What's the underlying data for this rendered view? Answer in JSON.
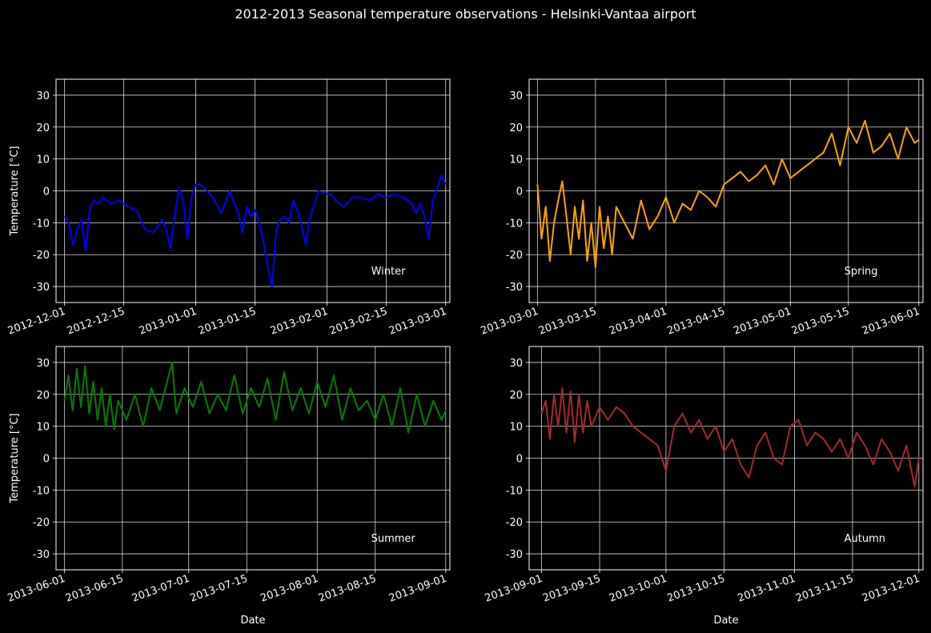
{
  "figure": {
    "title": "2012-2013 Seasonal temperature observations - Helsinki-Vantaa airport",
    "background": "#000000",
    "foreground": "#ffffff"
  },
  "chart_data": [
    {
      "type": "line",
      "panel": "top-left",
      "annotation": "Winter",
      "color": "#0000ff",
      "xlabel": "",
      "ylabel": "Temperature [°C]",
      "ylim": [
        -35,
        35
      ],
      "yticks": [
        -30,
        -20,
        -10,
        0,
        10,
        20,
        30
      ],
      "xlim": [
        "2012-11-29",
        "2013-03-02"
      ],
      "xticks": [
        "2012-12-01",
        "2012-12-15",
        "2013-01-01",
        "2013-01-15",
        "2013-02-01",
        "2013-02-15",
        "2013-03-01"
      ],
      "grid": true,
      "series": [
        {
          "x": [
            "2012-12-01",
            "2012-12-02",
            "2012-12-03",
            "2012-12-04",
            "2012-12-05",
            "2012-12-06",
            "2012-12-07",
            "2012-12-08",
            "2012-12-09",
            "2012-12-10",
            "2012-12-12",
            "2012-12-14",
            "2012-12-16",
            "2012-12-18",
            "2012-12-20",
            "2012-12-22",
            "2012-12-24",
            "2012-12-25",
            "2012-12-26",
            "2012-12-27",
            "2012-12-28",
            "2012-12-29",
            "2012-12-30",
            "2012-12-31",
            "2013-01-01",
            "2013-01-02",
            "2013-01-03",
            "2013-01-05",
            "2013-01-07",
            "2013-01-09",
            "2013-01-11",
            "2013-01-12",
            "2013-01-13",
            "2013-01-14",
            "2013-01-15",
            "2013-01-16",
            "2013-01-17",
            "2013-01-18",
            "2013-01-19",
            "2013-01-20",
            "2013-01-21",
            "2013-01-22",
            "2013-01-23",
            "2013-01-24",
            "2013-01-25",
            "2013-01-26",
            "2013-01-27",
            "2013-01-28",
            "2013-01-30",
            "2013-02-01",
            "2013-02-02",
            "2013-02-03",
            "2013-02-05",
            "2013-02-07",
            "2013-02-09",
            "2013-02-11",
            "2013-02-13",
            "2013-02-15",
            "2013-02-17",
            "2013-02-19",
            "2013-02-21",
            "2013-02-22",
            "2013-02-23",
            "2013-02-24",
            "2013-02-25",
            "2013-02-26",
            "2013-02-27",
            "2013-02-28",
            "2013-03-01"
          ],
          "values": [
            -8,
            -10,
            -17,
            -12,
            -9,
            -19,
            -5,
            -3,
            -4,
            -2,
            -4,
            -3,
            -5,
            -6,
            -12,
            -13,
            -9,
            -12,
            -18,
            -8,
            1,
            -3,
            -15,
            -2,
            2,
            2,
            1,
            -2,
            -7,
            0,
            -7,
            -13,
            -5,
            -8,
            -6,
            -10,
            -16,
            -24,
            -30,
            -12,
            -9,
            -8,
            -10,
            -3,
            -6,
            -11,
            -17,
            -8,
            0,
            -1,
            -1,
            -3,
            -5,
            -2,
            -2,
            -3,
            -1,
            -2,
            -1,
            -2,
            -4,
            -7,
            -4,
            -8,
            -15,
            -3,
            1,
            5,
            2
          ]
        }
      ]
    },
    {
      "type": "line",
      "panel": "top-right",
      "annotation": "Spring",
      "color": "#ffa500",
      "xlabel": "",
      "ylabel": "",
      "ylim": [
        -35,
        35
      ],
      "yticks": [
        -30,
        -20,
        -10,
        0,
        10,
        20,
        30
      ],
      "xlim": [
        "2013-02-27",
        "2013-06-02"
      ],
      "xticks": [
        "2013-03-01",
        "2013-03-15",
        "2013-04-01",
        "2013-04-15",
        "2013-05-01",
        "2013-05-15",
        "2013-06-01"
      ],
      "grid": true,
      "series": [
        {
          "x": [
            "2013-03-01",
            "2013-03-02",
            "2013-03-03",
            "2013-03-04",
            "2013-03-05",
            "2013-03-06",
            "2013-03-07",
            "2013-03-08",
            "2013-03-09",
            "2013-03-10",
            "2013-03-11",
            "2013-03-12",
            "2013-03-13",
            "2013-03-14",
            "2013-03-15",
            "2013-03-16",
            "2013-03-17",
            "2013-03-18",
            "2013-03-19",
            "2013-03-20",
            "2013-03-22",
            "2013-03-24",
            "2013-03-26",
            "2013-03-28",
            "2013-03-30",
            "2013-04-01",
            "2013-04-03",
            "2013-04-05",
            "2013-04-07",
            "2013-04-09",
            "2013-04-11",
            "2013-04-13",
            "2013-04-15",
            "2013-04-17",
            "2013-04-19",
            "2013-04-21",
            "2013-04-23",
            "2013-04-25",
            "2013-04-27",
            "2013-04-29",
            "2013-05-01",
            "2013-05-03",
            "2013-05-05",
            "2013-05-07",
            "2013-05-09",
            "2013-05-11",
            "2013-05-13",
            "2013-05-15",
            "2013-05-17",
            "2013-05-19",
            "2013-05-21",
            "2013-05-23",
            "2013-05-25",
            "2013-05-27",
            "2013-05-29",
            "2013-05-31",
            "2013-06-01"
          ],
          "values": [
            2,
            -15,
            -5,
            -22,
            -10,
            -3,
            3,
            -8,
            -20,
            -5,
            -15,
            -3,
            -22,
            -10,
            -24,
            -5,
            -18,
            -8,
            -20,
            -5,
            -10,
            -15,
            -3,
            -12,
            -8,
            -2,
            -10,
            -4,
            -6,
            0,
            -2,
            -5,
            2,
            4,
            6,
            3,
            5,
            8,
            2,
            10,
            4,
            6,
            8,
            10,
            12,
            18,
            8,
            20,
            15,
            22,
            12,
            14,
            18,
            10,
            20,
            15,
            16
          ]
        }
      ]
    },
    {
      "type": "line",
      "panel": "bottom-left",
      "annotation": "Summer",
      "color": "#008000",
      "xlabel": "Date",
      "ylabel": "Temperature [°C]",
      "ylim": [
        -35,
        35
      ],
      "yticks": [
        -30,
        -20,
        -10,
        0,
        10,
        20,
        30
      ],
      "xlim": [
        "2013-05-30",
        "2013-09-02"
      ],
      "xticks": [
        "2013-06-01",
        "2013-06-15",
        "2013-07-01",
        "2013-07-15",
        "2013-08-01",
        "2013-08-15",
        "2013-09-01"
      ],
      "grid": true,
      "series": [
        {
          "x": [
            "2013-06-01",
            "2013-06-02",
            "2013-06-03",
            "2013-06-04",
            "2013-06-05",
            "2013-06-06",
            "2013-06-07",
            "2013-06-08",
            "2013-06-09",
            "2013-06-10",
            "2013-06-11",
            "2013-06-12",
            "2013-06-13",
            "2013-06-14",
            "2013-06-16",
            "2013-06-18",
            "2013-06-20",
            "2013-06-22",
            "2013-06-24",
            "2013-06-26",
            "2013-06-27",
            "2013-06-28",
            "2013-06-30",
            "2013-07-02",
            "2013-07-04",
            "2013-07-06",
            "2013-07-08",
            "2013-07-10",
            "2013-07-12",
            "2013-07-14",
            "2013-07-16",
            "2013-07-18",
            "2013-07-20",
            "2013-07-22",
            "2013-07-24",
            "2013-07-26",
            "2013-07-28",
            "2013-07-30",
            "2013-08-01",
            "2013-08-03",
            "2013-08-05",
            "2013-08-07",
            "2013-08-09",
            "2013-08-11",
            "2013-08-13",
            "2013-08-15",
            "2013-08-17",
            "2013-08-19",
            "2013-08-21",
            "2013-08-23",
            "2013-08-25",
            "2013-08-27",
            "2013-08-29",
            "2013-08-31",
            "2013-09-01"
          ],
          "values": [
            18,
            26,
            15,
            28,
            16,
            29,
            14,
            24,
            12,
            22,
            10,
            20,
            9,
            18,
            12,
            20,
            10,
            22,
            15,
            25,
            30,
            14,
            22,
            16,
            24,
            14,
            20,
            15,
            26,
            14,
            22,
            16,
            25,
            12,
            27,
            15,
            22,
            14,
            24,
            16,
            26,
            12,
            22,
            15,
            18,
            12,
            20,
            10,
            22,
            8,
            20,
            10,
            18,
            12,
            15
          ]
        }
      ]
    },
    {
      "type": "line",
      "panel": "bottom-right",
      "annotation": "Autumn",
      "color": "#a52a2a",
      "xlabel": "Date",
      "ylabel": "",
      "ylim": [
        -35,
        35
      ],
      "yticks": [
        -30,
        -20,
        -10,
        0,
        10,
        20,
        30
      ],
      "xlim": [
        "2013-08-29",
        "2013-12-02"
      ],
      "xticks": [
        "2013-09-01",
        "2013-09-15",
        "2013-10-01",
        "2013-10-15",
        "2013-11-01",
        "2013-11-15",
        "2013-12-01"
      ],
      "grid": true,
      "series": [
        {
          "x": [
            "2013-09-01",
            "2013-09-02",
            "2013-09-03",
            "2013-09-04",
            "2013-09-05",
            "2013-09-06",
            "2013-09-07",
            "2013-09-08",
            "2013-09-09",
            "2013-09-10",
            "2013-09-11",
            "2013-09-12",
            "2013-09-13",
            "2013-09-15",
            "2013-09-17",
            "2013-09-19",
            "2013-09-21",
            "2013-09-23",
            "2013-09-25",
            "2013-09-27",
            "2013-09-29",
            "2013-10-01",
            "2013-10-03",
            "2013-10-05",
            "2013-10-07",
            "2013-10-09",
            "2013-10-11",
            "2013-10-13",
            "2013-10-15",
            "2013-10-17",
            "2013-10-19",
            "2013-10-21",
            "2013-10-23",
            "2013-10-25",
            "2013-10-27",
            "2013-10-29",
            "2013-10-31",
            "2013-11-02",
            "2013-11-04",
            "2013-11-06",
            "2013-11-08",
            "2013-11-10",
            "2013-11-12",
            "2013-11-14",
            "2013-11-16",
            "2013-11-18",
            "2013-11-20",
            "2013-11-22",
            "2013-11-24",
            "2013-11-26",
            "2013-11-28",
            "2013-11-30",
            "2013-12-01"
          ],
          "values": [
            14,
            18,
            6,
            20,
            10,
            22,
            8,
            21,
            5,
            20,
            8,
            18,
            10,
            16,
            12,
            16,
            14,
            10,
            8,
            6,
            4,
            -4,
            10,
            14,
            8,
            12,
            6,
            10,
            2,
            6,
            -2,
            -6,
            4,
            8,
            0,
            -2,
            10,
            12,
            4,
            8,
            6,
            2,
            6,
            0,
            8,
            4,
            -2,
            6,
            2,
            -4,
            4,
            -9,
            0
          ]
        }
      ]
    }
  ]
}
